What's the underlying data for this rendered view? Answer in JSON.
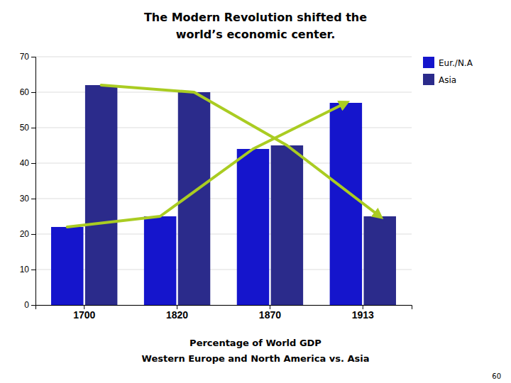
{
  "chart_data": {
    "type": "bar",
    "title": [
      "The Modern Revolution shifted the",
      "world’s economic center."
    ],
    "xlabel": [
      "Percentage of World GDP",
      "Western Europe and North America vs. Asia"
    ],
    "annotations": [
      "60"
    ],
    "categories": [
      "1700",
      "1820",
      "1870",
      "1913"
    ],
    "series": [
      {
        "name": "Eur./N.A",
        "color": "#1515CC",
        "values": [
          22,
          25,
          44,
          57
        ]
      },
      {
        "name": "Asia",
        "color": "#2B2B8B",
        "values": [
          62,
          60,
          45,
          25
        ]
      },
      {
        "type": "line",
        "color": "#AACC22",
        "values": [
          22,
          25,
          44,
          57
        ]
      },
      {
        "type": "line",
        "color": "#AACC22",
        "values": [
          62,
          60,
          45,
          25
        ]
      }
    ],
    "ylim": [
      0,
      70
    ],
    "yticks": [
      0,
      10,
      20,
      30,
      40,
      50,
      60,
      70
    ],
    "grid": true,
    "legend": "upper right"
  }
}
